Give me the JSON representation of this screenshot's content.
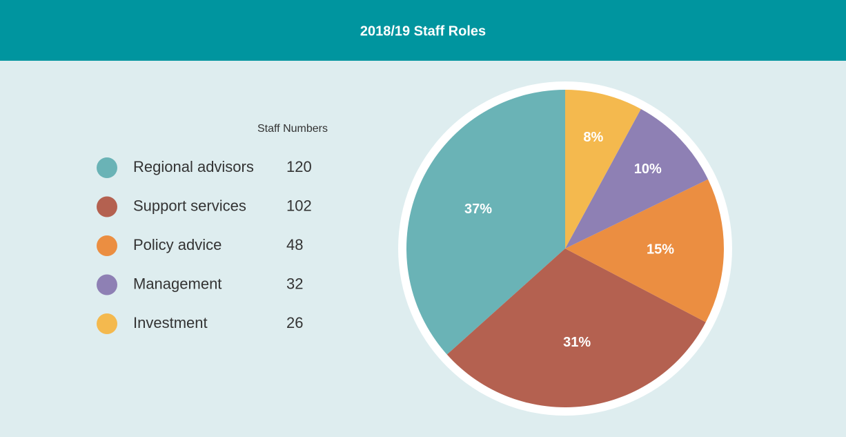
{
  "chart_data": {
    "type": "pie",
    "title": "2018/19 Staff Roles",
    "legend_title": "Staff Numbers",
    "categories": [
      "Regional advisors",
      "Support services",
      "Policy advice",
      "Management",
      "Investment"
    ],
    "staff_numbers": [
      120,
      102,
      48,
      32,
      26
    ],
    "values": [
      37,
      31,
      15,
      10,
      8
    ],
    "value_labels": [
      "37%",
      "31%",
      "15%",
      "10%",
      "8%"
    ],
    "colors": [
      "#6ab3b6",
      "#b46150",
      "#eb8e41",
      "#8e80b4",
      "#f4b94e"
    ]
  }
}
